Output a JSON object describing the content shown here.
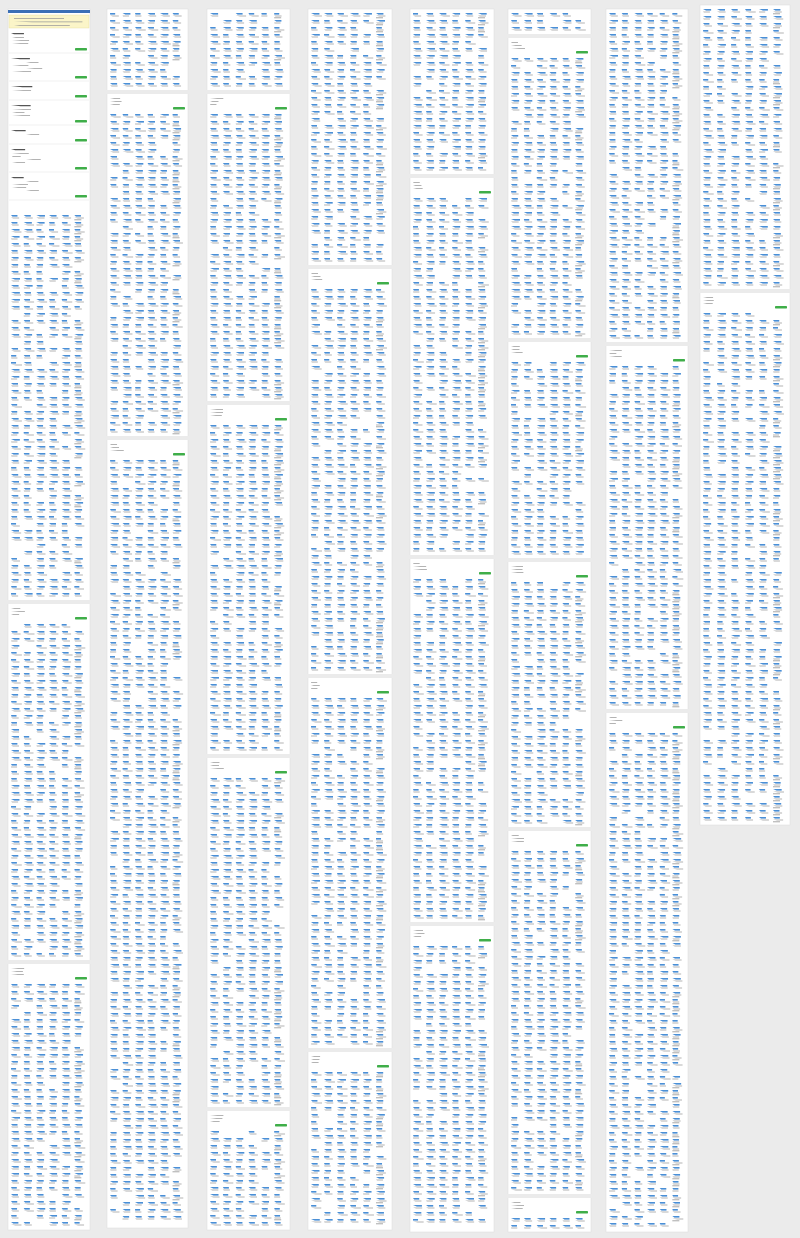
{
  "page": {
    "columns": 8
  }
}
